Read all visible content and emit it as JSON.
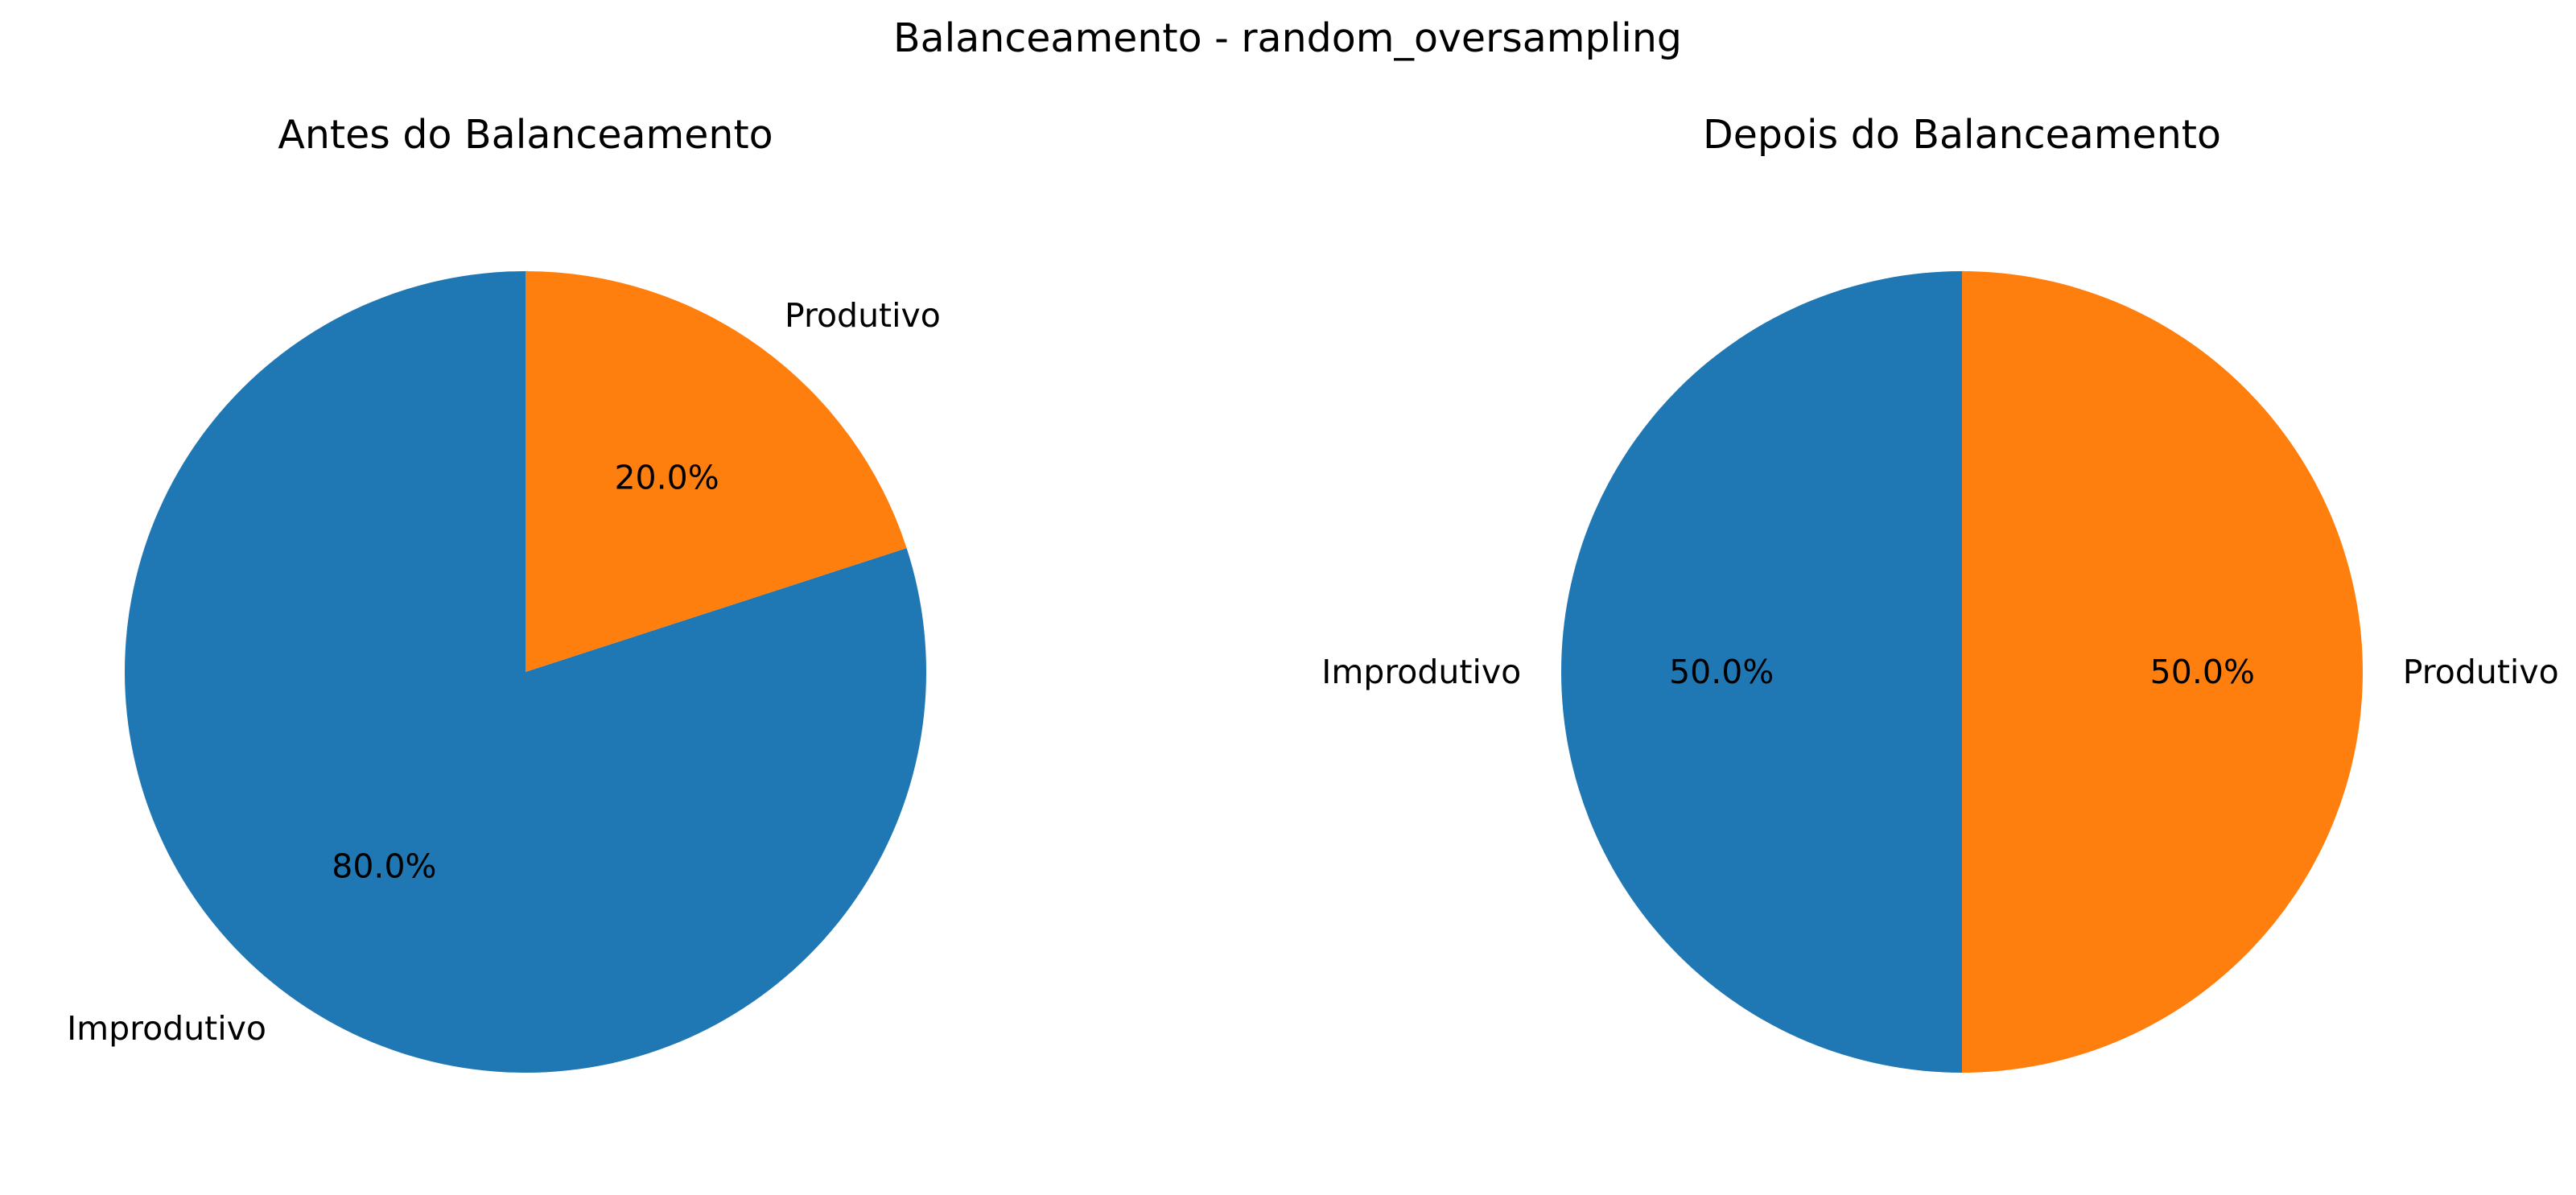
{
  "figure": {
    "title": "Balanceamento - random_oversampling"
  },
  "colors": {
    "Improdutivo": "#1f77b4",
    "Produtivo": "#ff7f0e"
  },
  "chart_data": [
    {
      "type": "pie",
      "title": "Antes do Balanceamento",
      "labels": [
        "Improdutivo",
        "Produtivo"
      ],
      "values": [
        80.0,
        20.0
      ],
      "value_labels": [
        "80.0%",
        "20.0%"
      ],
      "start_angle_deg": 90,
      "direction": "counterclockwise"
    },
    {
      "type": "pie",
      "title": "Depois do Balanceamento",
      "labels": [
        "Improdutivo",
        "Produtivo"
      ],
      "values": [
        50.0,
        50.0
      ],
      "value_labels": [
        "50.0%",
        "50.0%"
      ],
      "start_angle_deg": 90,
      "direction": "counterclockwise"
    }
  ]
}
